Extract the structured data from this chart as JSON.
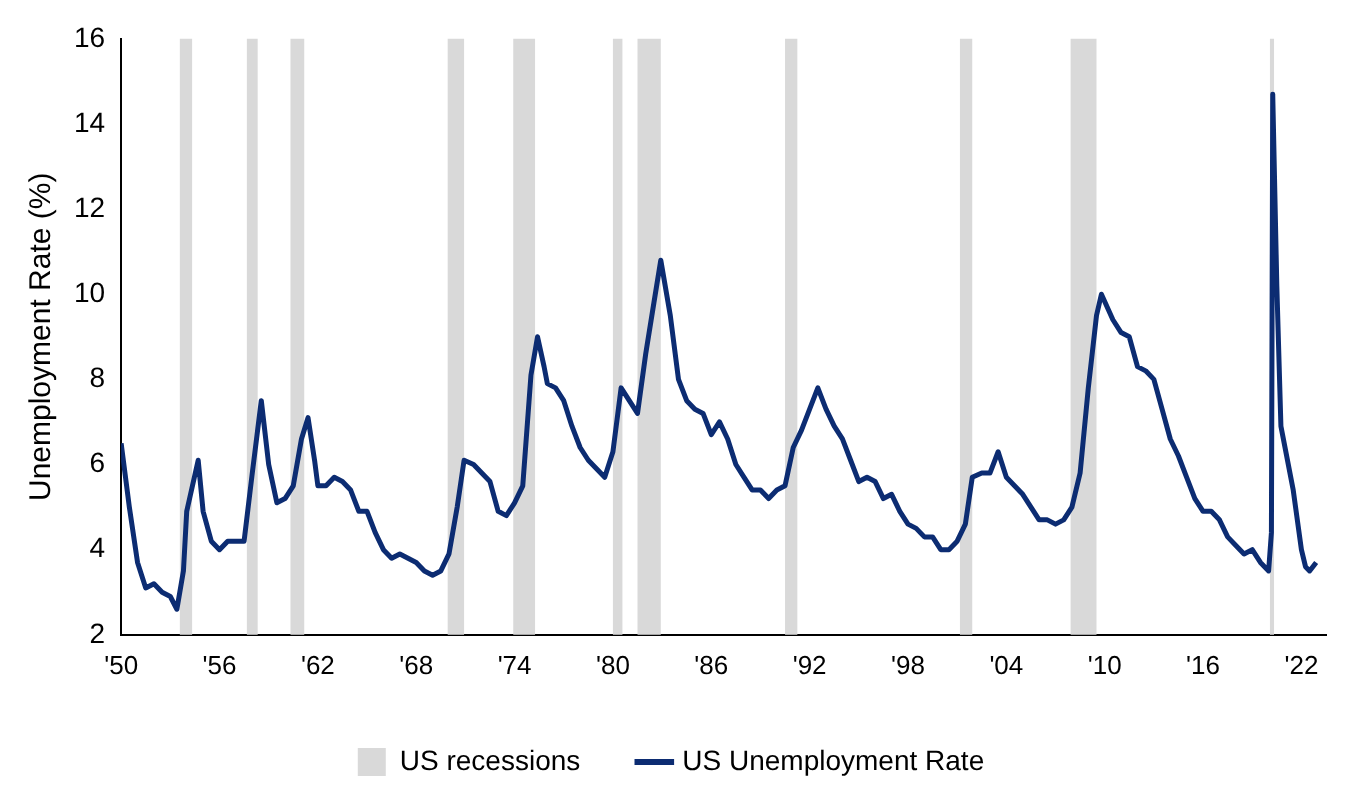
{
  "chart_data": {
    "type": "line",
    "ylabel": "Unemployment Rate (%)",
    "x": [
      1950.0,
      1950.5,
      1951.0,
      1951.5,
      1952.0,
      1952.5,
      1953.0,
      1953.4,
      1953.8,
      1954.0,
      1954.7,
      1955.0,
      1955.5,
      1956.0,
      1956.5,
      1957.0,
      1957.5,
      1958.0,
      1958.55,
      1959.0,
      1959.5,
      1960.0,
      1960.5,
      1961.0,
      1961.4,
      1961.8,
      1962.0,
      1962.5,
      1963.0,
      1963.5,
      1964.0,
      1964.5,
      1965.0,
      1965.5,
      1966.0,
      1966.5,
      1967.0,
      1967.5,
      1968.0,
      1968.5,
      1969.0,
      1969.5,
      1970.0,
      1970.5,
      1970.92,
      1971.5,
      1972.0,
      1972.5,
      1973.0,
      1973.5,
      1974.0,
      1974.5,
      1975.0,
      1975.4,
      1975.8,
      1976.0,
      1976.5,
      1977.0,
      1977.5,
      1978.0,
      1978.5,
      1979.0,
      1979.5,
      1980.0,
      1980.5,
      1981.0,
      1981.5,
      1982.0,
      1982.5,
      1982.92,
      1983.5,
      1984.0,
      1984.5,
      1985.0,
      1985.5,
      1986.0,
      1986.5,
      1987.0,
      1987.5,
      1988.0,
      1988.5,
      1989.0,
      1989.5,
      1990.0,
      1990.5,
      1991.0,
      1991.5,
      1992.0,
      1992.5,
      1993.0,
      1993.5,
      1994.0,
      1994.5,
      1995.0,
      1995.5,
      1996.0,
      1996.5,
      1997.0,
      1997.5,
      1998.0,
      1998.5,
      1999.0,
      1999.5,
      2000.0,
      2000.5,
      2001.0,
      2001.5,
      2001.92,
      2002.5,
      2003.0,
      2003.5,
      2004.0,
      2004.5,
      2005.0,
      2005.5,
      2006.0,
      2006.5,
      2007.0,
      2007.5,
      2008.0,
      2008.5,
      2009.0,
      2009.5,
      2009.8,
      2010.5,
      2011.0,
      2011.5,
      2012.0,
      2012.5,
      2013.0,
      2013.5,
      2014.0,
      2014.5,
      2015.0,
      2015.5,
      2016.0,
      2016.5,
      2017.0,
      2017.5,
      2018.0,
      2018.5,
      2019.0,
      2019.5,
      2020.0,
      2020.17,
      2020.25,
      2020.5,
      2020.75,
      2021.0,
      2021.5,
      2022.0,
      2022.25,
      2022.5,
      2022.9
    ],
    "series": [
      {
        "name": "US Unemployment Rate",
        "color": "#0c2c72",
        "values": [
          6.5,
          5.0,
          3.7,
          3.1,
          3.2,
          3.0,
          2.9,
          2.6,
          3.5,
          4.9,
          6.1,
          4.9,
          4.2,
          4.0,
          4.2,
          4.2,
          4.2,
          5.8,
          7.5,
          6.0,
          5.1,
          5.2,
          5.5,
          6.6,
          7.1,
          6.1,
          5.5,
          5.5,
          5.7,
          5.6,
          5.4,
          4.9,
          4.9,
          4.4,
          4.0,
          3.8,
          3.9,
          3.8,
          3.7,
          3.5,
          3.4,
          3.5,
          3.9,
          5.0,
          6.1,
          6.0,
          5.8,
          5.6,
          4.9,
          4.8,
          5.1,
          5.5,
          8.1,
          9.0,
          8.3,
          7.9,
          7.8,
          7.5,
          6.9,
          6.4,
          6.1,
          5.9,
          5.7,
          6.3,
          7.8,
          7.5,
          7.2,
          8.6,
          9.8,
          10.8,
          9.5,
          8.0,
          7.5,
          7.3,
          7.2,
          6.7,
          7.0,
          6.6,
          6.0,
          5.7,
          5.4,
          5.4,
          5.2,
          5.4,
          5.5,
          6.4,
          6.8,
          7.3,
          7.8,
          7.3,
          6.9,
          6.6,
          6.1,
          5.6,
          5.7,
          5.6,
          5.2,
          5.3,
          4.9,
          4.6,
          4.5,
          4.3,
          4.3,
          4.0,
          4.0,
          4.2,
          4.6,
          5.7,
          5.8,
          5.8,
          6.3,
          5.7,
          5.5,
          5.3,
          5.0,
          4.7,
          4.7,
          4.6,
          4.7,
          5.0,
          5.8,
          7.8,
          9.5,
          10.0,
          9.4,
          9.1,
          9.0,
          8.3,
          8.2,
          8.0,
          7.3,
          6.6,
          6.2,
          5.7,
          5.2,
          4.9,
          4.9,
          4.7,
          4.3,
          4.1,
          3.9,
          4.0,
          3.7,
          3.5,
          4.4,
          14.7,
          10.2,
          6.9,
          6.4,
          5.4,
          4.0,
          3.6,
          3.5,
          3.7
        ]
      }
    ],
    "bands": [
      {
        "axis": "x",
        "from": 1953.58,
        "to": 1954.33,
        "label": "US recessions",
        "color": "#d9d9d9"
      },
      {
        "axis": "x",
        "from": 1957.67,
        "to": 1958.33,
        "color": "#d9d9d9"
      },
      {
        "axis": "x",
        "from": 1960.33,
        "to": 1961.17,
        "color": "#d9d9d9"
      },
      {
        "axis": "x",
        "from": 1969.92,
        "to": 1970.92,
        "color": "#d9d9d9"
      },
      {
        "axis": "x",
        "from": 1973.92,
        "to": 1975.25,
        "color": "#d9d9d9"
      },
      {
        "axis": "x",
        "from": 1980.0,
        "to": 1980.58,
        "color": "#d9d9d9"
      },
      {
        "axis": "x",
        "from": 1981.5,
        "to": 1982.92,
        "color": "#d9d9d9"
      },
      {
        "axis": "x",
        "from": 1990.5,
        "to": 1991.25,
        "color": "#d9d9d9"
      },
      {
        "axis": "x",
        "from": 2001.17,
        "to": 2001.92,
        "color": "#d9d9d9"
      },
      {
        "axis": "x",
        "from": 2007.92,
        "to": 2009.5,
        "color": "#d9d9d9"
      },
      {
        "axis": "x",
        "from": 2020.08,
        "to": 2020.33,
        "color": "#d9d9d9"
      }
    ],
    "xlim": [
      1950,
      2023.5
    ],
    "xticks": [
      {
        "value": 1950,
        "label": "'50"
      },
      {
        "value": 1956,
        "label": "'56"
      },
      {
        "value": 1962,
        "label": "'62"
      },
      {
        "value": 1968,
        "label": "'68"
      },
      {
        "value": 1974,
        "label": "'74"
      },
      {
        "value": 1980,
        "label": "'80"
      },
      {
        "value": 1986,
        "label": "'86"
      },
      {
        "value": 1992,
        "label": "'92"
      },
      {
        "value": 1998,
        "label": "'98"
      },
      {
        "value": 2004,
        "label": "'04"
      },
      {
        "value": 2010,
        "label": "'10"
      },
      {
        "value": 2016,
        "label": "'16"
      },
      {
        "value": 2022,
        "label": "'22"
      }
    ],
    "ylim": [
      2,
      16
    ],
    "yticks": [
      2,
      4,
      6,
      8,
      10,
      12,
      14,
      16
    ],
    "grid": false,
    "legend": "bottom",
    "marker": "none",
    "line_style": "solid"
  }
}
